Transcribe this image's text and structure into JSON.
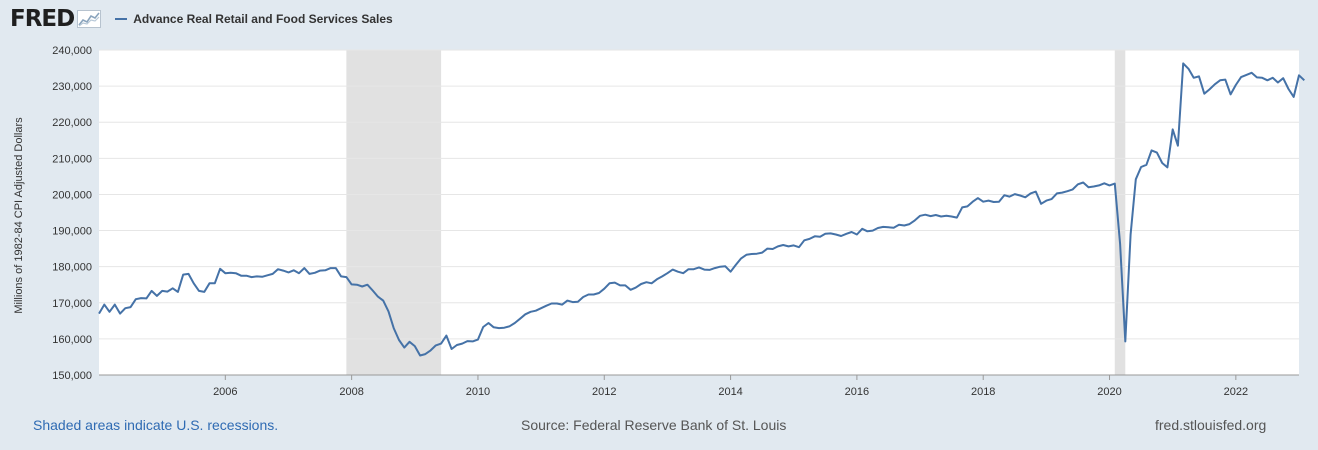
{
  "header": {
    "logo": "FRED",
    "logo_icon": "line-chart-icon",
    "legend_label": "Advance Real Retail and Food Services Sales"
  },
  "footer": {
    "recession_note": "Shaded areas indicate U.S. recessions.",
    "source": "Source: Federal Reserve Bank of St. Louis",
    "site": "fred.stlouisfed.org"
  },
  "colors": {
    "background": "#e1e9f0",
    "plot": "#ffffff",
    "series": "#4572a7",
    "recession": "#e1e1e1",
    "grid": "#e6e6e6"
  },
  "chart_data": {
    "type": "line",
    "title": "",
    "xlabel": "",
    "ylabel": "Millions of 1982-84 CPI Adjusted Dollars",
    "ylim": [
      150000,
      240000
    ],
    "xlim": [
      "2004-01",
      "2023-01"
    ],
    "yticks": [
      "150,000",
      "160,000",
      "170,000",
      "180,000",
      "190,000",
      "200,000",
      "210,000",
      "220,000",
      "230,000",
      "240,000"
    ],
    "xticks": [
      "2006",
      "2008",
      "2010",
      "2012",
      "2014",
      "2016",
      "2018",
      "2020",
      "2022"
    ],
    "grid": true,
    "legend": "top-left",
    "recessions": [
      {
        "start": "2007-12",
        "end": "2009-06"
      },
      {
        "start": "2020-02",
        "end": "2020-04"
      }
    ],
    "series": [
      {
        "name": "Advance Real Retail and Food Services Sales",
        "points": [
          [
            "2004-01",
            167000
          ],
          [
            "2004-02",
            169500
          ],
          [
            "2004-03",
            167500
          ],
          [
            "2004-04",
            169500
          ],
          [
            "2004-05",
            167000
          ],
          [
            "2004-06",
            168500
          ],
          [
            "2004-07",
            168800
          ],
          [
            "2004-08",
            171000
          ],
          [
            "2004-09",
            171300
          ],
          [
            "2004-10",
            171200
          ],
          [
            "2004-11",
            173300
          ],
          [
            "2004-12",
            171900
          ],
          [
            "2005-01",
            173300
          ],
          [
            "2005-02",
            173100
          ],
          [
            "2005-03",
            174000
          ],
          [
            "2005-04",
            173000
          ],
          [
            "2005-05",
            177800
          ],
          [
            "2005-06",
            178000
          ],
          [
            "2005-07",
            175400
          ],
          [
            "2005-08",
            173300
          ],
          [
            "2005-09",
            173000
          ],
          [
            "2005-10",
            175400
          ],
          [
            "2005-11",
            175400
          ],
          [
            "2005-12",
            179400
          ],
          [
            "2006-01",
            178200
          ],
          [
            "2006-02",
            178300
          ],
          [
            "2006-03",
            178200
          ],
          [
            "2006-04",
            177500
          ],
          [
            "2006-05",
            177500
          ],
          [
            "2006-06",
            177100
          ],
          [
            "2006-07",
            177300
          ],
          [
            "2006-08",
            177200
          ],
          [
            "2006-09",
            177600
          ],
          [
            "2006-10",
            178000
          ],
          [
            "2006-11",
            179300
          ],
          [
            "2006-12",
            178900
          ],
          [
            "2007-01",
            178400
          ],
          [
            "2007-02",
            179000
          ],
          [
            "2007-03",
            178200
          ],
          [
            "2007-04",
            179600
          ],
          [
            "2007-05",
            178000
          ],
          [
            "2007-06",
            178300
          ],
          [
            "2007-07",
            178900
          ],
          [
            "2007-08",
            179000
          ],
          [
            "2007-09",
            179600
          ],
          [
            "2007-10",
            179600
          ],
          [
            "2007-11",
            177300
          ],
          [
            "2007-12",
            177100
          ],
          [
            "2008-01",
            175100
          ],
          [
            "2008-02",
            175000
          ],
          [
            "2008-03",
            174500
          ],
          [
            "2008-04",
            175000
          ],
          [
            "2008-05",
            173400
          ],
          [
            "2008-06",
            171700
          ],
          [
            "2008-07",
            170600
          ],
          [
            "2008-08",
            167600
          ],
          [
            "2008-09",
            163000
          ],
          [
            "2008-10",
            159700
          ],
          [
            "2008-11",
            157600
          ],
          [
            "2008-12",
            159200
          ],
          [
            "2009-01",
            158000
          ],
          [
            "2009-02",
            155400
          ],
          [
            "2009-03",
            155800
          ],
          [
            "2009-04",
            156800
          ],
          [
            "2009-05",
            158200
          ],
          [
            "2009-06",
            158700
          ],
          [
            "2009-07",
            160900
          ],
          [
            "2009-08",
            157200
          ],
          [
            "2009-09",
            158300
          ],
          [
            "2009-10",
            158700
          ],
          [
            "2009-11",
            159400
          ],
          [
            "2009-12",
            159300
          ],
          [
            "2010-01",
            159800
          ],
          [
            "2010-02",
            163300
          ],
          [
            "2010-03",
            164400
          ],
          [
            "2010-04",
            163200
          ],
          [
            "2010-05",
            163000
          ],
          [
            "2010-06",
            163100
          ],
          [
            "2010-07",
            163500
          ],
          [
            "2010-08",
            164400
          ],
          [
            "2010-09",
            165600
          ],
          [
            "2010-10",
            166800
          ],
          [
            "2010-11",
            167500
          ],
          [
            "2010-12",
            167800
          ],
          [
            "2011-01",
            168500
          ],
          [
            "2011-02",
            169200
          ],
          [
            "2011-03",
            169800
          ],
          [
            "2011-04",
            169800
          ],
          [
            "2011-05",
            169500
          ],
          [
            "2011-06",
            170600
          ],
          [
            "2011-07",
            170200
          ],
          [
            "2011-08",
            170300
          ],
          [
            "2011-09",
            171600
          ],
          [
            "2011-10",
            172300
          ],
          [
            "2011-11",
            172300
          ],
          [
            "2011-12",
            172700
          ],
          [
            "2012-01",
            173900
          ],
          [
            "2012-02",
            175400
          ],
          [
            "2012-03",
            175600
          ],
          [
            "2012-04",
            174800
          ],
          [
            "2012-05",
            174800
          ],
          [
            "2012-06",
            173600
          ],
          [
            "2012-07",
            174200
          ],
          [
            "2012-08",
            175200
          ],
          [
            "2012-09",
            175700
          ],
          [
            "2012-10",
            175400
          ],
          [
            "2012-11",
            176500
          ],
          [
            "2012-12",
            177300
          ],
          [
            "2013-01",
            178200
          ],
          [
            "2013-02",
            179200
          ],
          [
            "2013-03",
            178600
          ],
          [
            "2013-04",
            178200
          ],
          [
            "2013-05",
            179300
          ],
          [
            "2013-06",
            179300
          ],
          [
            "2013-07",
            179800
          ],
          [
            "2013-08",
            179200
          ],
          [
            "2013-09",
            179100
          ],
          [
            "2013-10",
            179600
          ],
          [
            "2013-11",
            180000
          ],
          [
            "2013-12",
            180100
          ],
          [
            "2014-01",
            178600
          ],
          [
            "2014-02",
            180500
          ],
          [
            "2014-03",
            182300
          ],
          [
            "2014-04",
            183300
          ],
          [
            "2014-05",
            183500
          ],
          [
            "2014-06",
            183600
          ],
          [
            "2014-07",
            183900
          ],
          [
            "2014-08",
            185000
          ],
          [
            "2014-09",
            184900
          ],
          [
            "2014-10",
            185600
          ],
          [
            "2014-11",
            186000
          ],
          [
            "2014-12",
            185600
          ],
          [
            "2015-01",
            185900
          ],
          [
            "2015-02",
            185400
          ],
          [
            "2015-03",
            187300
          ],
          [
            "2015-04",
            187700
          ],
          [
            "2015-05",
            188400
          ],
          [
            "2015-06",
            188300
          ],
          [
            "2015-07",
            189100
          ],
          [
            "2015-08",
            189200
          ],
          [
            "2015-09",
            188900
          ],
          [
            "2015-10",
            188500
          ],
          [
            "2015-11",
            189100
          ],
          [
            "2015-12",
            189600
          ],
          [
            "2016-01",
            188900
          ],
          [
            "2016-02",
            190500
          ],
          [
            "2016-03",
            189800
          ],
          [
            "2016-04",
            190000
          ],
          [
            "2016-05",
            190700
          ],
          [
            "2016-06",
            191000
          ],
          [
            "2016-07",
            190900
          ],
          [
            "2016-08",
            190800
          ],
          [
            "2016-09",
            191600
          ],
          [
            "2016-10",
            191400
          ],
          [
            "2016-11",
            191800
          ],
          [
            "2016-12",
            192800
          ],
          [
            "2017-01",
            194100
          ],
          [
            "2017-02",
            194400
          ],
          [
            "2017-03",
            194000
          ],
          [
            "2017-04",
            194300
          ],
          [
            "2017-05",
            193900
          ],
          [
            "2017-06",
            194100
          ],
          [
            "2017-07",
            193900
          ],
          [
            "2017-08",
            193600
          ],
          [
            "2017-09",
            196400
          ],
          [
            "2017-10",
            196700
          ],
          [
            "2017-11",
            198000
          ],
          [
            "2017-12",
            199000
          ],
          [
            "2018-01",
            198000
          ],
          [
            "2018-02",
            198300
          ],
          [
            "2018-03",
            197900
          ],
          [
            "2018-04",
            198000
          ],
          [
            "2018-05",
            199800
          ],
          [
            "2018-06",
            199400
          ],
          [
            "2018-07",
            200100
          ],
          [
            "2018-08",
            199700
          ],
          [
            "2018-09",
            199200
          ],
          [
            "2018-10",
            200300
          ],
          [
            "2018-11",
            200800
          ],
          [
            "2018-12",
            197400
          ],
          [
            "2019-01",
            198300
          ],
          [
            "2019-02",
            198700
          ],
          [
            "2019-03",
            200300
          ],
          [
            "2019-04",
            200500
          ],
          [
            "2019-05",
            200900
          ],
          [
            "2019-06",
            201400
          ],
          [
            "2019-07",
            202800
          ],
          [
            "2019-08",
            203300
          ],
          [
            "2019-09",
            202000
          ],
          [
            "2019-10",
            202200
          ],
          [
            "2019-11",
            202500
          ],
          [
            "2019-12",
            203100
          ],
          [
            "2020-01",
            202500
          ],
          [
            "2020-02",
            203000
          ],
          [
            "2020-03",
            186300
          ],
          [
            "2020-04",
            159300
          ],
          [
            "2020-05",
            188900
          ],
          [
            "2020-06",
            204200
          ],
          [
            "2020-07",
            207600
          ],
          [
            "2020-08",
            208200
          ],
          [
            "2020-09",
            212200
          ],
          [
            "2020-10",
            211600
          ],
          [
            "2020-11",
            208700
          ],
          [
            "2020-12",
            207500
          ],
          [
            "2021-01",
            218000
          ],
          [
            "2021-02",
            213500
          ],
          [
            "2021-03",
            236300
          ],
          [
            "2021-04",
            234800
          ],
          [
            "2021-05",
            232300
          ],
          [
            "2021-06",
            232700
          ],
          [
            "2021-07",
            227900
          ],
          [
            "2021-08",
            229100
          ],
          [
            "2021-09",
            230500
          ],
          [
            "2021-10",
            231600
          ],
          [
            "2021-11",
            231800
          ],
          [
            "2021-12",
            227700
          ],
          [
            "2022-01",
            230300
          ],
          [
            "2022-02",
            232500
          ],
          [
            "2022-03",
            233100
          ],
          [
            "2022-04",
            233700
          ],
          [
            "2022-05",
            232400
          ],
          [
            "2022-06",
            232300
          ],
          [
            "2022-07",
            231600
          ],
          [
            "2022-08",
            232300
          ],
          [
            "2022-09",
            231000
          ],
          [
            "2022-10",
            232200
          ],
          [
            "2022-11",
            229200
          ],
          [
            "2022-12",
            227000
          ],
          [
            "2023-01",
            233000
          ],
          [
            "2023-02",
            231600
          ]
        ]
      }
    ]
  }
}
